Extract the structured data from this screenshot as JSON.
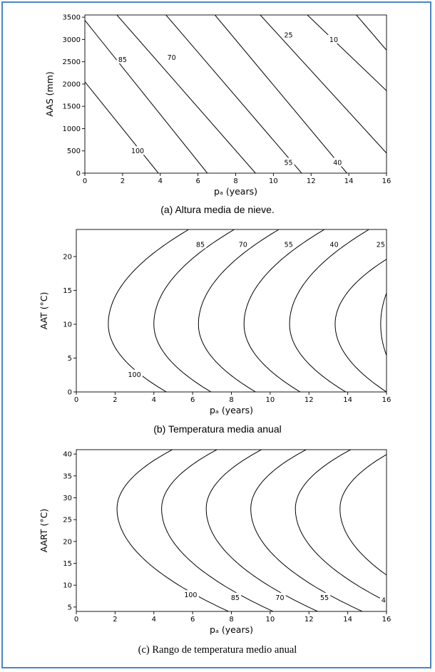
{
  "chart_data": [
    {
      "type": "contour",
      "caption": "(a) Altura media de nieve.",
      "xlabel": "pₐ (years)",
      "ylabel": "AAS (mm)",
      "xlim": [
        0,
        16
      ],
      "ylim": [
        0,
        3550
      ],
      "x_ticks": [
        "0",
        "2",
        "4",
        "6",
        "8",
        "10",
        "12",
        "14",
        "16"
      ],
      "y_ticks": [
        "0",
        "500",
        "1000",
        "1500",
        "2000",
        "2500",
        "3000",
        "3500"
      ],
      "contours": [
        {
          "level": "100",
          "points": [
            [
              0,
              2050
            ],
            [
              3.9,
              0
            ]
          ]
        },
        {
          "level": "85",
          "points": [
            [
              0,
              3430
            ],
            [
              6.5,
              0
            ]
          ]
        },
        {
          "level": "70",
          "points": [
            [
              1.7,
              3550
            ],
            [
              9.05,
              0
            ]
          ]
        },
        {
          "level": "55",
          "points": [
            [
              4.3,
              3550
            ],
            [
              11.5,
              0
            ]
          ]
        },
        {
          "level": "40",
          "points": [
            [
              6.9,
              3550
            ],
            [
              13.9,
              0
            ]
          ]
        },
        {
          "level": "25",
          "points": [
            [
              9.3,
              3550
            ],
            [
              16,
              450
            ]
          ]
        },
        {
          "level": "10",
          "points": [
            [
              11.8,
              3550
            ],
            [
              16,
              1850
            ]
          ]
        },
        {
          "level": "",
          "points": [
            [
              14.4,
              3550
            ],
            [
              16,
              2760
            ]
          ]
        }
      ],
      "contour_labels": [
        {
          "text": "100",
          "x": 2.8,
          "y": 500
        },
        {
          "text": "85",
          "x": 2.0,
          "y": 2550
        },
        {
          "text": "70",
          "x": 4.6,
          "y": 2600
        },
        {
          "text": "55",
          "x": 10.8,
          "y": 240
        },
        {
          "text": "40",
          "x": 13.4,
          "y": 240
        },
        {
          "text": "25",
          "x": 10.8,
          "y": 3100
        },
        {
          "text": "10",
          "x": 13.2,
          "y": 3000
        }
      ]
    },
    {
      "type": "contour",
      "caption": "(b) Temperatura media anual",
      "xlabel": "pₐ (years)",
      "ylabel": "AAT (°C)",
      "xlim": [
        0,
        16
      ],
      "ylim": [
        0,
        24
      ],
      "x_ticks": [
        "0",
        "2",
        "4",
        "6",
        "8",
        "10",
        "12",
        "14",
        "16"
      ],
      "y_ticks": [
        "0",
        "5",
        "10",
        "15",
        "20"
      ],
      "contours": [
        {
          "level": "100",
          "vertex": [
            1.65,
            10
          ],
          "end": [
            4.65,
            0
          ],
          "top": [
            5.8,
            24
          ]
        },
        {
          "level": "85",
          "vertex": [
            4.0,
            10
          ],
          "end": [
            6.95,
            0
          ],
          "top": [
            8.15,
            24
          ]
        },
        {
          "level": "70",
          "vertex": [
            6.3,
            10
          ],
          "end": [
            9.25,
            0
          ],
          "top": [
            10.45,
            24
          ]
        },
        {
          "level": "55",
          "vertex": [
            8.65,
            10
          ],
          "end": [
            11.55,
            0
          ],
          "top": [
            12.8,
            24
          ]
        },
        {
          "level": "40",
          "vertex": [
            11.0,
            10
          ],
          "end": [
            13.9,
            0
          ],
          "top": [
            15.1,
            24
          ]
        },
        {
          "level": "25",
          "vertex": [
            13.35,
            10
          ],
          "end": [
            16.0,
            0
          ],
          "top": [
            16.0,
            19.6
          ]
        },
        {
          "level": "",
          "vertex": [
            15.7,
            10
          ],
          "end": [
            16.0,
            5.4
          ],
          "top": [
            16.0,
            14.6
          ]
        }
      ],
      "contour_labels": [
        {
          "text": "100",
          "x": 3.0,
          "y": 2.6
        },
        {
          "text": "85",
          "x": 6.4,
          "y": 21.8
        },
        {
          "text": "70",
          "x": 8.6,
          "y": 21.8
        },
        {
          "text": "55",
          "x": 10.95,
          "y": 21.8
        },
        {
          "text": "40",
          "x": 13.3,
          "y": 21.8
        },
        {
          "text": "25",
          "x": 15.7,
          "y": 21.8
        }
      ]
    },
    {
      "type": "contour",
      "caption": "(c) Rango de temperatura medio anual",
      "xlabel": "pₐ (years)",
      "ylabel": "AART (°C)",
      "xlim": [
        0,
        16
      ],
      "ylim": [
        4,
        41
      ],
      "x_ticks": [
        "0",
        "2",
        "4",
        "6",
        "8",
        "10",
        "12",
        "14",
        "16"
      ],
      "y_ticks": [
        "5",
        "10",
        "15",
        "20",
        "25",
        "30",
        "35",
        "40"
      ],
      "contours": [
        {
          "level": "100",
          "vertex": [
            2.1,
            27.5
          ],
          "end": [
            7.85,
            4
          ],
          "top": [
            4.95,
            41
          ]
        },
        {
          "level": "85",
          "vertex": [
            4.4,
            27.5
          ],
          "end": [
            10.15,
            4
          ],
          "top": [
            7.25,
            41
          ]
        },
        {
          "level": "70",
          "vertex": [
            6.7,
            27.5
          ],
          "end": [
            12.45,
            4
          ],
          "top": [
            9.55,
            41
          ]
        },
        {
          "level": "55",
          "vertex": [
            9.0,
            27.5
          ],
          "end": [
            14.75,
            4
          ],
          "top": [
            11.85,
            41
          ]
        },
        {
          "level": "4",
          "vertex": [
            11.3,
            27.5
          ],
          "end": [
            17.05,
            4
          ],
          "top": [
            14.15,
            41
          ]
        },
        {
          "level": "",
          "vertex": [
            13.6,
            27.5
          ],
          "end": [
            19.35,
            4
          ],
          "top": [
            16.45,
            41
          ]
        }
      ],
      "contour_labels": [
        {
          "text": "100",
          "x": 5.9,
          "y": 7.8
        },
        {
          "text": "85",
          "x": 8.2,
          "y": 7.2
        },
        {
          "text": "70",
          "x": 10.5,
          "y": 7.2
        },
        {
          "text": "55",
          "x": 12.8,
          "y": 7.2
        },
        {
          "text": "4",
          "x": 15.85,
          "y": 6.6
        }
      ]
    }
  ]
}
